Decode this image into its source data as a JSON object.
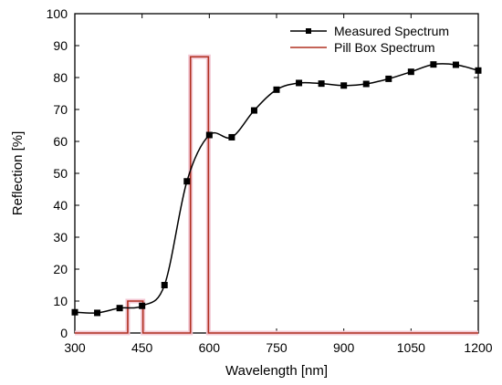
{
  "chart_data": {
    "type": "line",
    "xlabel": "Wavelength [nm]",
    "ylabel": "Reflection [%]",
    "xlim": [
      300,
      1200
    ],
    "ylim": [
      0,
      100
    ],
    "xticks": [
      300,
      450,
      600,
      750,
      900,
      1050,
      1200
    ],
    "yticks": [
      0,
      10,
      20,
      30,
      40,
      50,
      60,
      70,
      80,
      90,
      100
    ],
    "grid": false,
    "legend_position": "top-right",
    "series": [
      {
        "name": "Measured Spectrum",
        "color": "#000000",
        "marker": "square",
        "x": [
          300,
          350,
          400,
          450,
          500,
          550,
          600,
          650,
          700,
          750,
          800,
          850,
          900,
          950,
          1000,
          1050,
          1100,
          1150,
          1200
        ],
        "y": [
          6.5,
          6.3,
          7.8,
          8.5,
          15,
          47.5,
          62,
          61.3,
          69.7,
          76.2,
          78.3,
          78.1,
          77.5,
          78,
          79.6,
          81.8,
          84.1,
          84,
          82.2
        ]
      },
      {
        "name": "Pill Box Spectrum",
        "color": "#b03020",
        "marker": "none",
        "step": true,
        "x": [
          300,
          418,
          418,
          452,
          452,
          558,
          558,
          598,
          598,
          1200
        ],
        "y": [
          0,
          0,
          10,
          10,
          0,
          0,
          86.5,
          86.5,
          0,
          0
        ]
      }
    ]
  }
}
